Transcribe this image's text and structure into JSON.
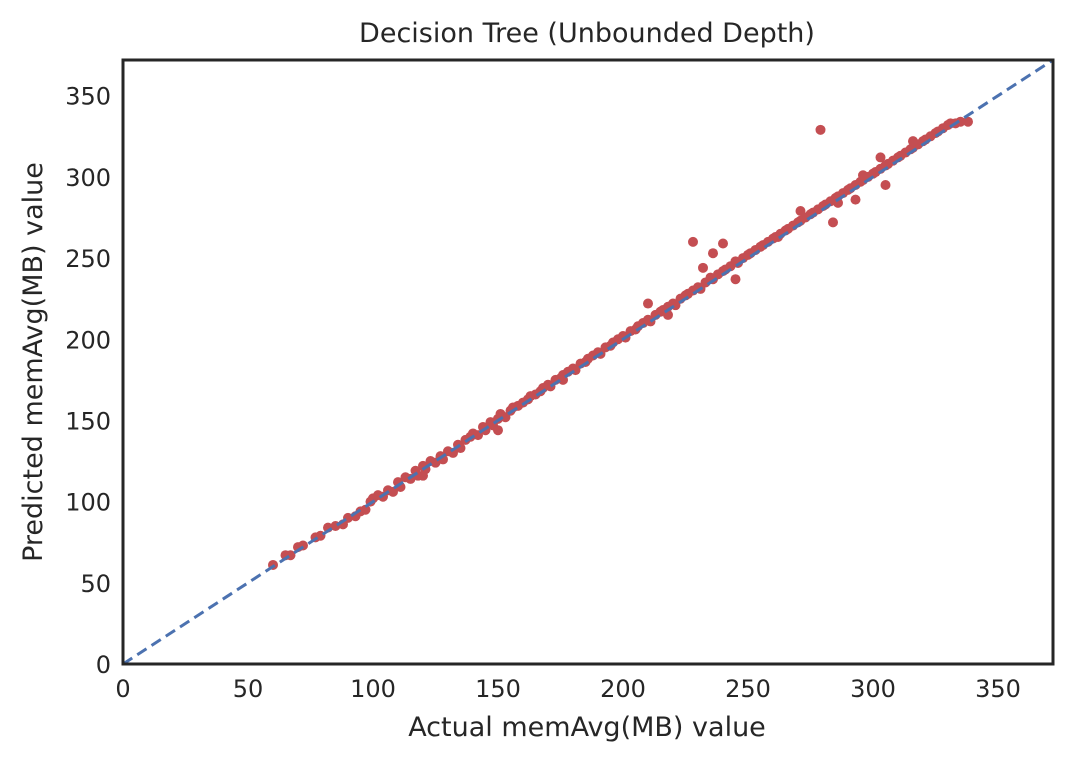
{
  "chart_data": {
    "type": "scatter",
    "title": "Decision Tree (Unbounded Depth)",
    "xlabel": "Actual memAvg(MB) value",
    "ylabel": "Predicted memAvg(MB) value",
    "xlim": [
      0,
      372
    ],
    "ylim": [
      0,
      372
    ],
    "xticks": [
      "0",
      "50",
      "100",
      "150",
      "200",
      "250",
      "300",
      "350"
    ],
    "yticks": [
      "0",
      "50",
      "100",
      "150",
      "200",
      "250",
      "300",
      "350"
    ],
    "grid": false,
    "reference_line": {
      "x": [
        0,
        372
      ],
      "y": [
        0,
        372
      ],
      "style": "dashed",
      "color": "#4c72b0"
    },
    "point_color": "#c44e52",
    "series": [
      {
        "points": [
          [
            60,
            61
          ],
          [
            65,
            67
          ],
          [
            67,
            67
          ],
          [
            70,
            72
          ],
          [
            72,
            73
          ],
          [
            77,
            78
          ],
          [
            79,
            79
          ],
          [
            82,
            84
          ],
          [
            85,
            85
          ],
          [
            88,
            86
          ],
          [
            90,
            90
          ],
          [
            93,
            91
          ],
          [
            95,
            94
          ],
          [
            97,
            95
          ],
          [
            99,
            100
          ],
          [
            100,
            102
          ],
          [
            102,
            104
          ],
          [
            104,
            103
          ],
          [
            106,
            107
          ],
          [
            108,
            106
          ],
          [
            110,
            112
          ],
          [
            111,
            109
          ],
          [
            113,
            115
          ],
          [
            115,
            114
          ],
          [
            117,
            119
          ],
          [
            118,
            116
          ],
          [
            120,
            122
          ],
          [
            121,
            120
          ],
          [
            123,
            125
          ],
          [
            125,
            124
          ],
          [
            127,
            128
          ],
          [
            128,
            126
          ],
          [
            130,
            131
          ],
          [
            132,
            130
          ],
          [
            134,
            135
          ],
          [
            135,
            133
          ],
          [
            137,
            138
          ],
          [
            139,
            140
          ],
          [
            140,
            142
          ],
          [
            142,
            141
          ],
          [
            144,
            146
          ],
          [
            145,
            144
          ],
          [
            147,
            149
          ],
          [
            148,
            147
          ],
          [
            150,
            151
          ],
          [
            151,
            154
          ],
          [
            153,
            152
          ],
          [
            155,
            156
          ],
          [
            156,
            158
          ],
          [
            158,
            159
          ],
          [
            160,
            161
          ],
          [
            162,
            163
          ],
          [
            163,
            165
          ],
          [
            165,
            166
          ],
          [
            167,
            168
          ],
          [
            168,
            170
          ],
          [
            170,
            172
          ],
          [
            171,
            171
          ],
          [
            173,
            175
          ],
          [
            175,
            176
          ],
          [
            176,
            178
          ],
          [
            178,
            180
          ],
          [
            180,
            182
          ],
          [
            181,
            181
          ],
          [
            183,
            185
          ],
          [
            185,
            186
          ],
          [
            186,
            188
          ],
          [
            188,
            190
          ],
          [
            190,
            192
          ],
          [
            191,
            191
          ],
          [
            193,
            195
          ],
          [
            195,
            196
          ],
          [
            196,
            198
          ],
          [
            198,
            200
          ],
          [
            200,
            202
          ],
          [
            201,
            201
          ],
          [
            203,
            205
          ],
          [
            205,
            206
          ],
          [
            206,
            208
          ],
          [
            208,
            210
          ],
          [
            210,
            212
          ],
          [
            211,
            211
          ],
          [
            213,
            215
          ],
          [
            215,
            217
          ],
          [
            216,
            218
          ],
          [
            218,
            220
          ],
          [
            220,
            222
          ],
          [
            221,
            221
          ],
          [
            223,
            225
          ],
          [
            225,
            227
          ],
          [
            226,
            228
          ],
          [
            228,
            230
          ],
          [
            230,
            232
          ],
          [
            231,
            231
          ],
          [
            233,
            235
          ],
          [
            235,
            238
          ],
          [
            236,
            237
          ],
          [
            238,
            240
          ],
          [
            240,
            242
          ],
          [
            241,
            243
          ],
          [
            243,
            245
          ],
          [
            245,
            248
          ],
          [
            246,
            247
          ],
          [
            248,
            250
          ],
          [
            250,
            252
          ],
          [
            251,
            253
          ],
          [
            253,
            255
          ],
          [
            255,
            257
          ],
          [
            256,
            258
          ],
          [
            258,
            260
          ],
          [
            260,
            262
          ],
          [
            261,
            263
          ],
          [
            263,
            265
          ],
          [
            265,
            267
          ],
          [
            266,
            268
          ],
          [
            268,
            270
          ],
          [
            270,
            272
          ],
          [
            271,
            273
          ],
          [
            273,
            275
          ],
          [
            275,
            277
          ],
          [
            276,
            278
          ],
          [
            278,
            280
          ],
          [
            280,
            282
          ],
          [
            281,
            283
          ],
          [
            283,
            285
          ],
          [
            285,
            287
          ],
          [
            286,
            288
          ],
          [
            288,
            290
          ],
          [
            290,
            292
          ],
          [
            291,
            293
          ],
          [
            293,
            295
          ],
          [
            295,
            297
          ],
          [
            296,
            298
          ],
          [
            298,
            300
          ],
          [
            300,
            302
          ],
          [
            301,
            303
          ],
          [
            303,
            305
          ],
          [
            305,
            307
          ],
          [
            306,
            308
          ],
          [
            308,
            310
          ],
          [
            310,
            312
          ],
          [
            311,
            313
          ],
          [
            313,
            315
          ],
          [
            315,
            317
          ],
          [
            316,
            318
          ],
          [
            318,
            320
          ],
          [
            320,
            322
          ],
          [
            321,
            323
          ],
          [
            323,
            325
          ],
          [
            325,
            327
          ],
          [
            326,
            328
          ],
          [
            328,
            330
          ],
          [
            330,
            332
          ],
          [
            331,
            333
          ],
          [
            333,
            333
          ],
          [
            335,
            334
          ],
          [
            338,
            334
          ],
          [
            279,
            329
          ],
          [
            240,
            259
          ],
          [
            236,
            253
          ],
          [
            228,
            260
          ],
          [
            232,
            244
          ],
          [
            286,
            284
          ],
          [
            293,
            286
          ],
          [
            296,
            301
          ],
          [
            303,
            312
          ],
          [
            245,
            237
          ],
          [
            262,
            263
          ],
          [
            271,
            279
          ],
          [
            284,
            272
          ],
          [
            305,
            295
          ],
          [
            316,
            322
          ],
          [
            150,
            144
          ],
          [
            176,
            175
          ],
          [
            210,
            222
          ],
          [
            218,
            215
          ],
          [
            120,
            116
          ]
        ]
      }
    ]
  }
}
